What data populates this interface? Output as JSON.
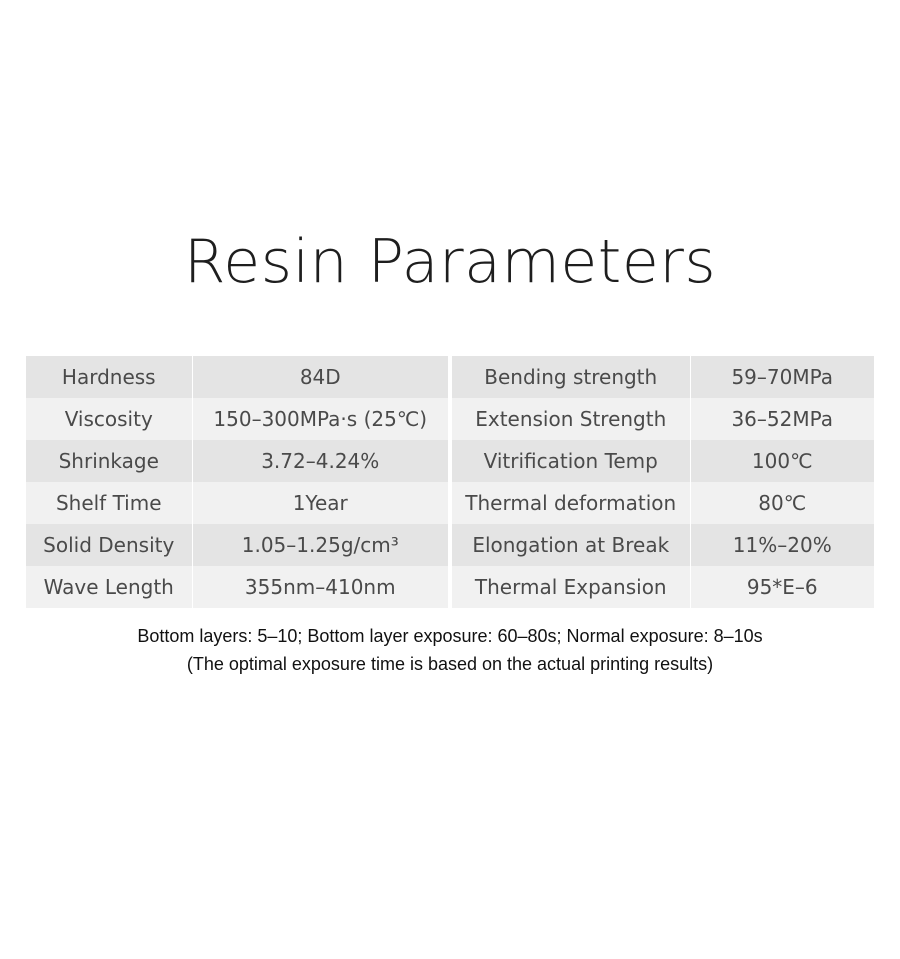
{
  "title": "Resin Parameters",
  "table_left": {
    "rows": [
      {
        "name": "Hardness",
        "value": "84D"
      },
      {
        "name": "Viscosity",
        "value": "150–300MPa·s (25℃)"
      },
      {
        "name": "Shrinkage",
        "value": "3.72–4.24%"
      },
      {
        "name": "Shelf Time",
        "value": "1Year"
      },
      {
        "name": "Solid Density",
        "value": "1.05–1.25g/cm³"
      },
      {
        "name": "Wave Length",
        "value": "355nm–410nm"
      }
    ]
  },
  "table_right": {
    "rows": [
      {
        "name": "Bending strength",
        "value": "59–70MPa"
      },
      {
        "name": "Extension Strength",
        "value": "36–52MPa"
      },
      {
        "name": "Vitrification Temp",
        "value": "100℃"
      },
      {
        "name": "Thermal deformation",
        "value": "80℃"
      },
      {
        "name": "Elongation at Break",
        "value": "11%–20%"
      },
      {
        "name": "Thermal Expansion",
        "value": "95*E–6"
      }
    ]
  },
  "notes": {
    "line1": "Bottom layers: 5–10; Bottom layer exposure: 60–80s; Normal exposure: 8–10s",
    "line2": "(The optimal exposure time is based on the actual printing results)"
  }
}
